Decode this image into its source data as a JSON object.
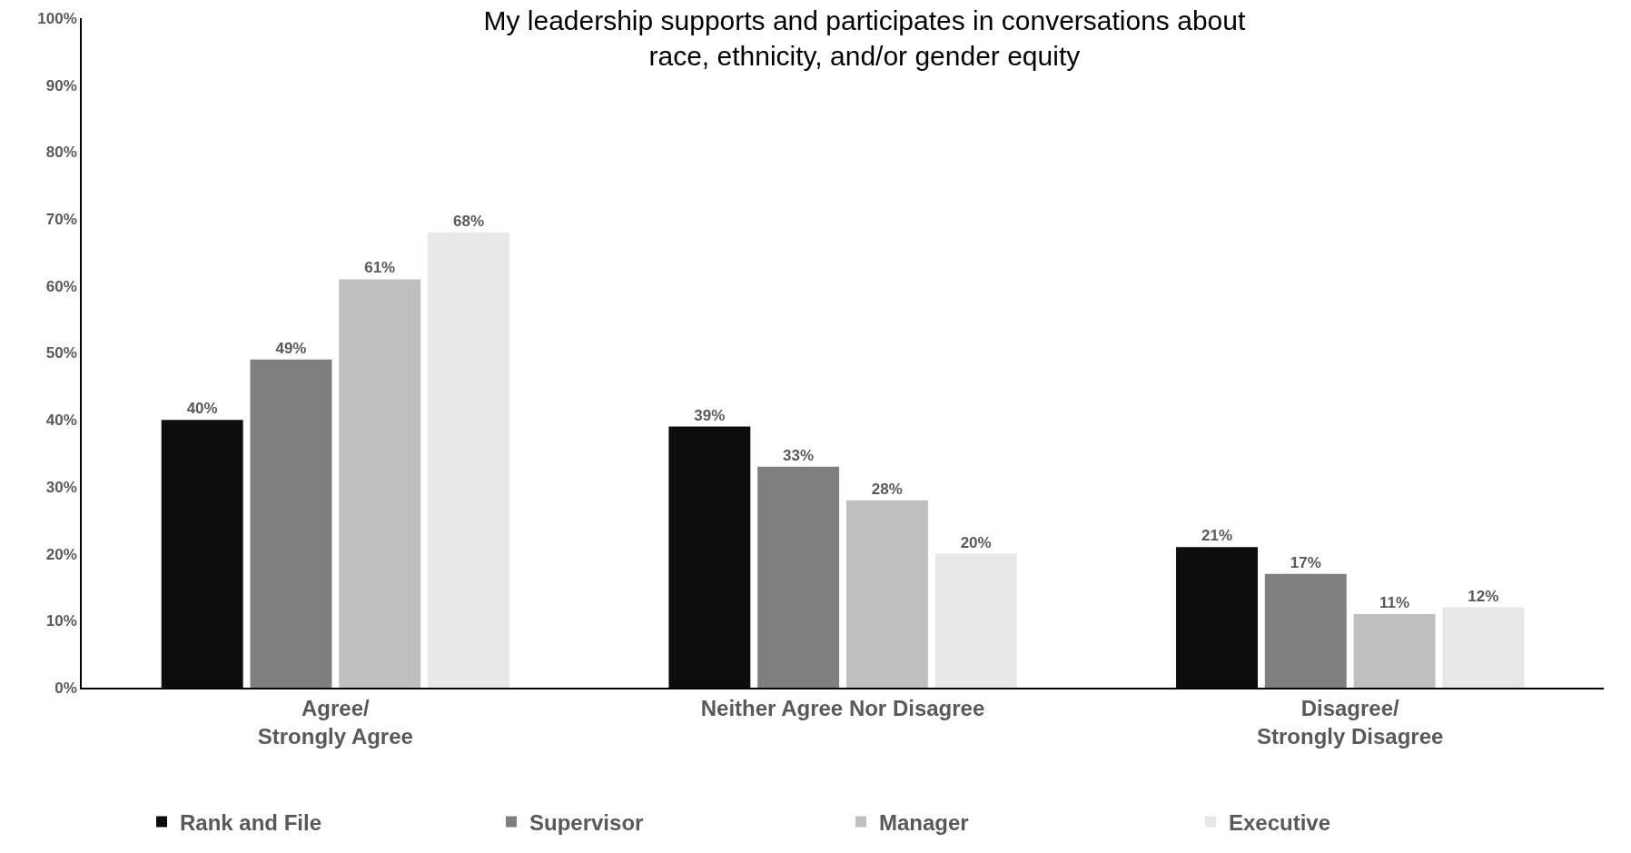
{
  "chart_data": {
    "type": "bar",
    "title": "My leadership supports and participates in conversations about\nrace, ethnicity, and/or gender equity",
    "categories": [
      "Agree/\nStrongly Agree",
      "Neither Agree Nor Disagree",
      "Disagree/\nStrongly Disagree"
    ],
    "series": [
      {
        "name": "Rank and File",
        "color": "#0d0d0d",
        "values": [
          40,
          39,
          21
        ],
        "value_labels": [
          "40%",
          "39%",
          "21%"
        ]
      },
      {
        "name": "Supervisor",
        "color": "#7f7f7f",
        "values": [
          49,
          33,
          17
        ],
        "value_labels": [
          "49%",
          "33%",
          "17%"
        ]
      },
      {
        "name": "Manager",
        "color": "#bfbfbf",
        "values": [
          61,
          28,
          11
        ],
        "value_labels": [
          "61%",
          "28%",
          "11%"
        ]
      },
      {
        "name": "Executive",
        "color": "#e7e7e7",
        "values": [
          68,
          20,
          12
        ],
        "value_labels": [
          "68%",
          "20%",
          "12%"
        ]
      }
    ],
    "ylim": [
      0,
      100
    ],
    "yticks": [
      {
        "value": 0,
        "label": "0%"
      },
      {
        "value": 10,
        "label": "10%"
      },
      {
        "value": 20,
        "label": "20%"
      },
      {
        "value": 30,
        "label": "30%"
      },
      {
        "value": 40,
        "label": "40%"
      },
      {
        "value": 50,
        "label": "50%"
      },
      {
        "value": 60,
        "label": "60%"
      },
      {
        "value": 70,
        "label": "70%"
      },
      {
        "value": 80,
        "label": "80%"
      },
      {
        "value": 90,
        "label": "90%"
      },
      {
        "value": 100,
        "label": "100%"
      }
    ],
    "legend": "bottom"
  }
}
